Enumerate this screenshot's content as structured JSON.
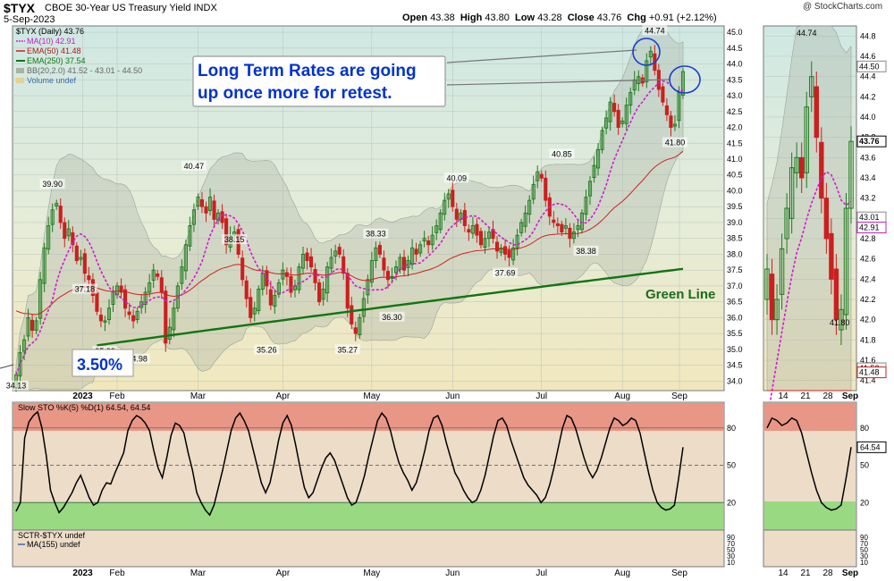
{
  "header": {
    "symbol": "$TYX",
    "description": "CBOE 30-Year US Treasury Yield INDX",
    "date": "5-Sep-2023",
    "open": "43.38",
    "high": "43.80",
    "low": "43.28",
    "close": "43.76",
    "change": "+0.91 (+2.12%)",
    "credit": "@ StockCharts.com"
  },
  "legend": {
    "main": "$TYX (Daily) 43.76",
    "ma10": "MA(10) 42.91",
    "ema50": "EMA(50) 41.48",
    "ema250": "EMA(250) 37.54",
    "bb": "BB(20,2.0) 41.52 - 43.01 - 44.50",
    "volume": "Volume undef"
  },
  "annotations": {
    "callout_line1": "Long Term Rates are going",
    "callout_line2": "up once more for retest.",
    "pct_label": "3.50%",
    "green_line": "Green Line"
  },
  "sto_legend": "Slow STO %K(5) %D(1) 64.54, 64.54",
  "sctr_legend": "SCTR-$TYX undef",
  "sctr_ma": "MA(155) undef",
  "colors": {
    "up": "#1c7a1c",
    "down": "#cc1f1f",
    "ma10": "#d01ad0",
    "ema50": "#d02020",
    "ema250": "#127512",
    "callout": "#0033cc"
  },
  "chart_data": [
    {
      "type": "candlestick",
      "title": "$TYX CBOE 30-Year US Treasury Yield INDX",
      "x_labels": [
        "2023",
        "Feb",
        "Mar",
        "Apr",
        "May",
        "Jun",
        "Jul",
        "Aug",
        "Sep"
      ],
      "ylim": [
        33.7,
        45.2
      ],
      "y_ticks": [
        "34.0",
        "34.5",
        "35.0",
        "35.5",
        "36.0",
        "36.5",
        "37.0",
        "37.5",
        "38.0",
        "38.5",
        "39.0",
        "39.5",
        "40.0",
        "40.5",
        "41.0",
        "41.5",
        "42.0",
        "42.5",
        "43.0",
        "43.5",
        "44.0",
        "44.5",
        "45.0"
      ],
      "close": [
        34.2,
        34.9,
        35.3,
        36.0,
        35.6,
        35.9,
        37.2,
        38.2,
        38.9,
        39.4,
        39.6,
        39.0,
        38.5,
        38.8,
        38.3,
        37.8,
        37.9,
        37.4,
        37.2,
        36.7,
        36.2,
        35.9,
        35.9,
        36.3,
        36.8,
        37.0,
        36.8,
        36.3,
        36.1,
        35.9,
        36.2,
        36.5,
        36.8,
        37.1,
        37.5,
        37.3,
        36.8,
        35.2,
        35.7,
        36.3,
        37.0,
        37.6,
        38.3,
        38.9,
        39.4,
        39.8,
        39.5,
        39.3,
        39.8,
        39.1,
        39.3,
        39.0,
        38.3,
        38.6,
        38.7,
        38.0,
        37.2,
        36.6,
        36.0,
        36.3,
        36.9,
        37.4,
        37.0,
        36.4,
        36.7,
        37.1,
        37.5,
        37.3,
        36.8,
        37.0,
        37.6,
        38.0,
        37.8,
        37.6,
        37.1,
        36.5,
        36.9,
        37.6,
        37.9,
        38.1,
        38.0,
        37.4,
        36.3,
        35.8,
        35.5,
        36.0,
        36.6,
        37.2,
        37.8,
        38.2,
        38.0,
        37.5,
        37.2,
        37.3,
        37.6,
        37.9,
        37.5,
        37.8,
        38.2,
        38.0,
        38.3,
        38.5,
        38.3,
        38.6,
        38.9,
        39.3,
        39.7,
        39.9,
        39.5,
        39.1,
        39.3,
        38.9,
        38.7,
        38.9,
        38.6,
        38.3,
        38.5,
        38.7,
        38.5,
        38.1,
        38.2,
        38.0,
        37.9,
        38.2,
        38.6,
        39.0,
        39.3,
        39.7,
        40.2,
        40.6,
        40.4,
        39.7,
        39.2,
        39.0,
        38.9,
        38.7,
        38.9,
        38.5,
        38.7,
        38.9,
        39.3,
        39.8,
        40.3,
        40.8,
        41.3,
        41.9,
        42.3,
        42.8,
        42.5,
        42.0,
        42.2,
        42.7,
        43.1,
        43.5,
        43.6,
        43.4,
        44.1,
        44.4,
        43.8,
        43.2,
        42.8,
        42.4,
        42.0,
        42.1,
        43.1,
        43.76
      ]
    },
    {
      "type": "line",
      "title": "Slow STO %K(5) %D(1)",
      "ylim": [
        0,
        100
      ],
      "y_ticks": [
        "80",
        "50",
        "20"
      ],
      "values": [
        13,
        20,
        72,
        85,
        90,
        93,
        80,
        58,
        30,
        20,
        12,
        16,
        22,
        28,
        36,
        42,
        33,
        24,
        18,
        20,
        30,
        36,
        35,
        44,
        52,
        60,
        78,
        86,
        90,
        88,
        84,
        78,
        62,
        48,
        40,
        56,
        74,
        84,
        82,
        76,
        60,
        46,
        28,
        20,
        14,
        10,
        18,
        32,
        46,
        62,
        78,
        88,
        92,
        86,
        78,
        64,
        50,
        36,
        28,
        36,
        52,
        70,
        84,
        90,
        82,
        66,
        48,
        32,
        24,
        28,
        38,
        48,
        56,
        60,
        54,
        44,
        34,
        24,
        18,
        20,
        30,
        42,
        58,
        72,
        86,
        92,
        88,
        78,
        64,
        52,
        44,
        38,
        30,
        36,
        48,
        62,
        78,
        88,
        90,
        82,
        68,
        56,
        44,
        38,
        30,
        24,
        20,
        22,
        30,
        42,
        58,
        74,
        86,
        88,
        82,
        70,
        60,
        50,
        40,
        34,
        30,
        26,
        20,
        24,
        34,
        48,
        64,
        80,
        90,
        88,
        80,
        68,
        56,
        46,
        40,
        46,
        56,
        68,
        80,
        88,
        86,
        82,
        84,
        88,
        86,
        76,
        60,
        44,
        30,
        20,
        16,
        14,
        15,
        18,
        40,
        64.54
      ]
    }
  ],
  "inset": {
    "x_labels": [
      "14",
      "21",
      "28",
      "Sep"
    ],
    "y_ticks": [
      "41.4",
      "41.6",
      "41.8",
      "42.0",
      "42.2",
      "42.4",
      "42.6",
      "42.8",
      "43.0",
      "43.2",
      "43.4",
      "43.6",
      "43.8",
      "44.0",
      "44.2",
      "44.4",
      "44.6",
      "44.8"
    ],
    "ylim": [
      41.3,
      44.9
    ],
    "label_high": "44.74",
    "label_low": "41.80",
    "price_tags": [
      "44.50",
      "43.76",
      "43.01",
      "42.91",
      "41.52",
      "41.48"
    ],
    "sto_ticks": [
      "80",
      "64.54",
      "50",
      "20"
    ],
    "sctr_ticks": [
      "90",
      "70",
      "50",
      "30",
      "10"
    ]
  },
  "peaks": [
    {
      "label": "34.13",
      "i": 0
    },
    {
      "label": "39.90",
      "i": 9
    },
    {
      "label": "37.18",
      "i": 17
    },
    {
      "label": "35.22",
      "i": 22
    },
    {
      "label": "34.98",
      "i": 30
    },
    {
      "label": "40.47",
      "i": 44
    },
    {
      "label": "38.15",
      "i": 54
    },
    {
      "label": "35.26",
      "i": 62
    },
    {
      "label": "35.27",
      "i": 82
    },
    {
      "label": "38.33",
      "i": 89
    },
    {
      "label": "36.30",
      "i": 93
    },
    {
      "label": "40.09",
      "i": 109
    },
    {
      "label": "37.69",
      "i": 121
    },
    {
      "label": "40.85",
      "i": 135
    },
    {
      "label": "38.38",
      "i": 141
    },
    {
      "label": "44.74",
      "i": 158
    },
    {
      "label": "41.80",
      "i": 163
    }
  ]
}
